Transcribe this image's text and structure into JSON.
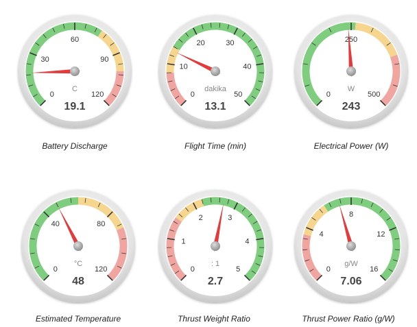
{
  "colors": {
    "green": "#7fcd7f",
    "yellow": "#f6d58e",
    "red": "#f0a5a0",
    "needle": "#e33b3b",
    "ring_outer": "#e6e6e6",
    "face": "#ffffff",
    "tick": "#333333",
    "label": "#333333",
    "unit": "#888888",
    "value": "#444444"
  },
  "gauges": [
    {
      "title": "Battery Discharge",
      "unit": "C",
      "value": 19.1,
      "value_text": "19.1",
      "min": 0,
      "max": 120,
      "ticks": [
        "0",
        "30",
        "60",
        "90",
        "120"
      ],
      "bands": [
        {
          "from": 0,
          "to": 75,
          "color": "green"
        },
        {
          "from": 75,
          "to": 100,
          "color": "yellow"
        },
        {
          "from": 100,
          "to": 120,
          "color": "red"
        }
      ]
    },
    {
      "title": "Flight Time (min)",
      "unit": "dakika",
      "value": 13.1,
      "value_text": "13.1",
      "min": 0,
      "max": 50,
      "ticks": [
        "0",
        "10",
        "20",
        "30",
        "40",
        "50"
      ],
      "bands": [
        {
          "from": 0,
          "to": 8,
          "color": "red"
        },
        {
          "from": 8,
          "to": 14,
          "color": "yellow"
        },
        {
          "from": 14,
          "to": 50,
          "color": "green"
        }
      ]
    },
    {
      "title": "Electrical Power (W)",
      "unit": "W",
      "value": 243,
      "value_text": "243",
      "min": 0,
      "max": 500,
      "ticks": [
        "0",
        "250",
        "500"
      ],
      "bands": [
        {
          "from": 0,
          "to": 260,
          "color": "green"
        },
        {
          "from": 260,
          "to": 380,
          "color": "yellow"
        },
        {
          "from": 380,
          "to": 500,
          "color": "red"
        }
      ]
    },
    {
      "title": "Estimated Temperature",
      "unit": "°C",
      "value": 48,
      "value_text": "48",
      "min": 0,
      "max": 120,
      "ticks": [
        "0",
        "40",
        "80",
        "120"
      ],
      "bands": [
        {
          "from": 0,
          "to": 60,
          "color": "green"
        },
        {
          "from": 60,
          "to": 90,
          "color": "yellow"
        },
        {
          "from": 90,
          "to": 120,
          "color": "red"
        }
      ]
    },
    {
      "title": "Thrust Weight Ratio",
      "unit": ": 1",
      "value": 2.7,
      "value_text": "2.7",
      "min": 0,
      "max": 5,
      "ticks": [
        "0",
        "1",
        "2",
        "3",
        "4",
        "5"
      ],
      "bands": [
        {
          "from": 0,
          "to": 1.5,
          "color": "red"
        },
        {
          "from": 1.5,
          "to": 2.2,
          "color": "yellow"
        },
        {
          "from": 2.2,
          "to": 5,
          "color": "green"
        }
      ]
    },
    {
      "title": "Thrust Power Ratio (g/W)",
      "unit": "g/W",
      "value": 7.06,
      "value_text": "7.06",
      "min": 0,
      "max": 16,
      "ticks": [
        "0",
        "4",
        "8",
        "12",
        "16"
      ],
      "bands": [
        {
          "from": 0,
          "to": 3.5,
          "color": "red"
        },
        {
          "from": 3.5,
          "to": 6,
          "color": "yellow"
        },
        {
          "from": 6,
          "to": 16,
          "color": "green"
        }
      ]
    }
  ]
}
